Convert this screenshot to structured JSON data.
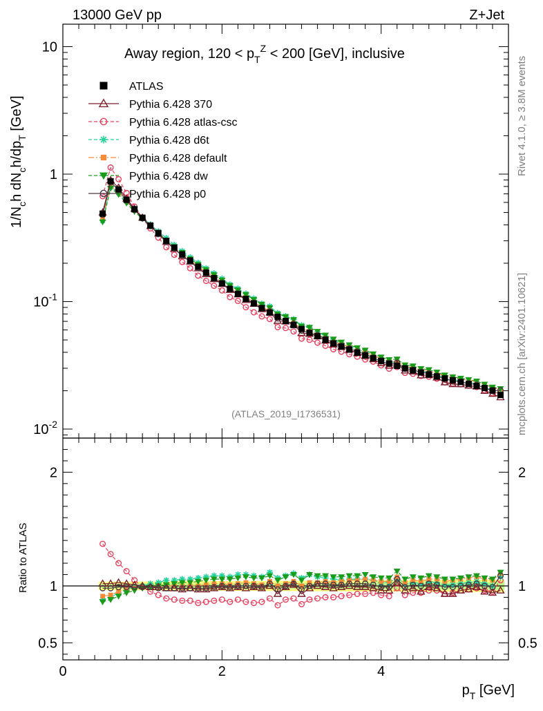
{
  "header": {
    "energy_label": "13000 GeV pp",
    "process_label": "Z+Jet"
  },
  "side_labels": {
    "rivet": "Rivet 4.1.0, ≥ 3.8M events",
    "mcplots": "mcplots.cern.ch [arXiv:2401.10621]"
  },
  "colors": {
    "atlas": "#000000",
    "p370": "#7a1f2b",
    "atlas_csc": "#e8405e",
    "d6t": "#1fd19b",
    "default": "#f58a3a",
    "dw": "#1a9c1a",
    "p0": "#4a3a44",
    "band_yellow": "#ffff66",
    "band_green": "#b5f28a"
  },
  "chart_data": [
    {
      "type": "line",
      "panel": "main",
      "title": "Away region, 120 < p_T^Z < 200 [GeV], inclusive",
      "ylabel": "1/N_ch dN_ch/dp_T [GeV]",
      "yscale": "log",
      "xlim": [
        0,
        5.6
      ],
      "ylim": [
        0.0085,
        15
      ],
      "ytick_labels": [
        "10^{-2}",
        "10^{-1}",
        "1",
        "10"
      ],
      "watermark": "(ATLAS_2019_I1736531)",
      "legend_position": "top-left",
      "series": [
        {
          "key": "atlas",
          "name": "ATLAS",
          "marker": "square-filled",
          "style": "points"
        },
        {
          "key": "p370",
          "name": "Pythia 6.428 370",
          "marker": "triangle-open",
          "style": "solid",
          "ratio": [
            1.02,
            1.02,
            1.03,
            1.02,
            1.01,
            1.0,
            0.99,
            0.99,
            0.98,
            0.98,
            0.97,
            0.98,
            0.97,
            0.97,
            0.98,
            0.99,
            0.98,
            0.99,
            0.98,
            0.99,
            0.98,
            1.0,
            0.93,
            0.99,
            1.01,
            0.93,
            0.98,
            1.0,
            0.99,
            0.98,
            0.99,
            1.0,
            0.99,
            0.99,
            0.98,
            0.96,
            0.96,
            1.03,
            0.96,
            0.98,
            0.95,
            0.99,
            0.98,
            0.93,
            0.93,
            0.96,
            0.97,
            0.99,
            0.95,
            0.94,
            0.96
          ]
        },
        {
          "key": "atlas_csc",
          "name": "Pythia 6.428 atlas-csc",
          "marker": "circle-open",
          "style": "dashed",
          "ratio": [
            1.37,
            1.28,
            1.2,
            1.13,
            1.05,
            0.99,
            0.95,
            0.92,
            0.89,
            0.88,
            0.87,
            0.87,
            0.85,
            0.86,
            0.87,
            0.88,
            0.86,
            0.88,
            0.86,
            0.85,
            0.86,
            0.89,
            0.83,
            0.88,
            0.89,
            0.84,
            0.88,
            0.89,
            0.9,
            0.9,
            0.91,
            0.92,
            0.93,
            0.93,
            0.94,
            0.92,
            0.91,
            0.98,
            0.92,
            0.94,
            0.94,
            0.96,
            0.96,
            0.93,
            0.94,
            0.96,
            0.97,
            0.98,
            0.96,
            0.95,
            1.05
          ]
        },
        {
          "key": "d6t",
          "name": "Pythia 6.428 d6t",
          "marker": "star",
          "style": "dashed",
          "ratio": [
            0.88,
            0.9,
            0.94,
            0.97,
            0.99,
            1.0,
            1.02,
            1.03,
            1.05,
            1.05,
            1.06,
            1.06,
            1.07,
            1.08,
            1.09,
            1.09,
            1.08,
            1.1,
            1.1,
            1.09,
            1.08,
            1.12,
            1.07,
            1.09,
            1.11,
            1.07,
            1.1,
            1.08,
            1.07,
            1.06,
            1.05,
            1.06,
            1.06,
            1.06,
            1.05,
            1.03,
            1.03,
            1.07,
            1.02,
            1.03,
            1.02,
            1.04,
            1.03,
            1.01,
            1.01,
            1.02,
            1.03,
            1.04,
            1.02,
            1.0,
            1.08
          ]
        },
        {
          "key": "default",
          "name": "Pythia 6.428 default",
          "marker": "square-filled-small",
          "style": "dashdot",
          "ratio": [
            0.91,
            0.92,
            0.95,
            0.97,
            0.98,
            0.99,
            0.99,
            1.0,
            1.0,
            1.0,
            1.0,
            1.0,
            1.0,
            1.01,
            1.02,
            1.02,
            1.01,
            1.02,
            1.03,
            1.02,
            1.01,
            1.04,
            1.0,
            1.02,
            1.04,
            1.0,
            1.03,
            1.03,
            1.04,
            1.03,
            1.04,
            1.05,
            1.05,
            1.06,
            1.05,
            1.04,
            1.04,
            1.08,
            1.03,
            1.05,
            1.04,
            1.06,
            1.06,
            1.04,
            1.05,
            1.06,
            1.07,
            1.08,
            1.06,
            1.05,
            1.11
          ]
        },
        {
          "key": "dw",
          "name": "Pythia 6.428 dw",
          "marker": "triangle-down-filled",
          "style": "dashed",
          "ratio": [
            0.86,
            0.88,
            0.91,
            0.94,
            0.96,
            0.98,
            0.99,
            1.0,
            1.01,
            1.02,
            1.03,
            1.03,
            1.04,
            1.05,
            1.06,
            1.06,
            1.06,
            1.07,
            1.08,
            1.07,
            1.07,
            1.09,
            1.05,
            1.08,
            1.1,
            1.05,
            1.1,
            1.09,
            1.09,
            1.08,
            1.08,
            1.09,
            1.09,
            1.1,
            1.08,
            1.07,
            1.07,
            1.13,
            1.06,
            1.08,
            1.07,
            1.09,
            1.08,
            1.06,
            1.06,
            1.07,
            1.08,
            1.09,
            1.07,
            1.06,
            1.12
          ]
        },
        {
          "key": "p0",
          "name": "Pythia 6.428 p0",
          "marker": "circle-open",
          "style": "solid",
          "ratio": [
            0.98,
            0.98,
            0.99,
            0.99,
            0.99,
            0.99,
            0.99,
            0.98,
            0.98,
            0.98,
            0.98,
            0.98,
            0.98,
            0.98,
            0.99,
            1.0,
            0.99,
            1.0,
            1.0,
            1.0,
            0.99,
            1.02,
            0.97,
            1.0,
            1.02,
            0.97,
            1.0,
            1.02,
            1.02,
            1.01,
            1.01,
            1.02,
            1.02,
            1.02,
            1.01,
            0.99,
            0.99,
            1.06,
            0.99,
            1.01,
            1.0,
            1.02,
            1.01,
            0.99,
            0.99,
            1.0,
            1.01,
            1.02,
            1.0,
            0.99,
            1.09
          ]
        }
      ],
      "x": [
        0.5,
        0.6,
        0.7,
        0.8,
        0.9,
        1.0,
        1.1,
        1.2,
        1.3,
        1.4,
        1.5,
        1.6,
        1.7,
        1.8,
        1.9,
        2.0,
        2.1,
        2.2,
        2.3,
        2.4,
        2.5,
        2.6,
        2.7,
        2.8,
        2.9,
        3.0,
        3.1,
        3.2,
        3.3,
        3.4,
        3.5,
        3.6,
        3.7,
        3.8,
        3.9,
        4.0,
        4.1,
        4.2,
        4.3,
        4.4,
        4.5,
        4.6,
        4.7,
        4.8,
        4.9,
        5.0,
        5.1,
        5.2,
        5.3,
        5.4,
        5.5
      ],
      "atlas_values": [
        0.49,
        0.88,
        0.76,
        0.63,
        0.53,
        0.455,
        0.395,
        0.345,
        0.3,
        0.265,
        0.235,
        0.21,
        0.188,
        0.169,
        0.153,
        0.139,
        0.126,
        0.115,
        0.105,
        0.097,
        0.089,
        0.082,
        0.076,
        0.0705,
        0.0655,
        0.061,
        0.057,
        0.0535,
        0.05,
        0.047,
        0.0445,
        0.042,
        0.0398,
        0.0378,
        0.036,
        0.0343,
        0.0327,
        0.0313,
        0.03,
        0.0289,
        0.0278,
        0.0268,
        0.0259,
        0.025,
        0.0242,
        0.0234,
        0.0226,
        0.0218,
        0.021,
        0.0201,
        0.0185
      ]
    },
    {
      "type": "line",
      "panel": "ratio",
      "ylabel": "Ratio to ATLAS",
      "xlabel": "p_T [GeV]",
      "xlim": [
        0,
        5.6
      ],
      "ylim": [
        0.35,
        2.3
      ],
      "ytick_labels": [
        "0.5",
        "1",
        "2"
      ],
      "xtick_labels": [
        "0",
        "2",
        "4"
      ],
      "reference": 1.0
    }
  ]
}
